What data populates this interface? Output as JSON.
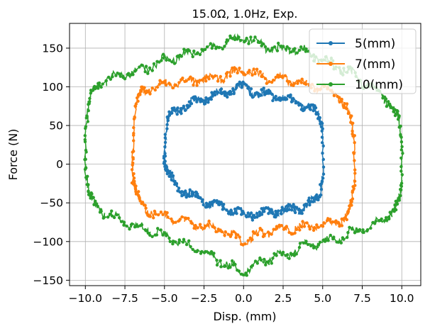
{
  "chart_data": {
    "type": "scatter",
    "title": "15.0Ω, 1.0Hz, Exp.",
    "xlabel": "Disp. (mm)",
    "ylabel": "Force (N)",
    "xlim": [
      -11,
      11.2
    ],
    "ylim": [
      -157,
      182
    ],
    "xticks": [
      -10.0,
      -7.5,
      -5.0,
      -2.5,
      0.0,
      2.5,
      5.0,
      7.5,
      10.0
    ],
    "xtick_labels": [
      "−10.0",
      "−7.5",
      "−5.0",
      "−2.5",
      "0.0",
      "2.5",
      "5.0",
      "7.5",
      "10.0"
    ],
    "yticks": [
      -150,
      -100,
      -50,
      0,
      50,
      100,
      150
    ],
    "ytick_labels": [
      "−150",
      "−100",
      "−50",
      "0",
      "50",
      "100",
      "150"
    ],
    "grid": true,
    "legend_position": "top-right",
    "series": [
      {
        "name": "5(mm)",
        "color": "#1f77b4",
        "amplitude": 5,
        "x": [
          -5.0,
          -4.8,
          -4.5,
          -4.0,
          -3.5,
          -3.0,
          -2.5,
          -2.0,
          -1.5,
          -1.0,
          -0.5,
          0.0,
          0.5,
          1.0,
          1.5,
          2.0,
          2.5,
          3.0,
          3.5,
          4.0,
          4.5,
          4.8,
          5.0,
          5.0,
          4.8,
          4.5,
          4.0,
          3.5,
          3.0,
          2.5,
          2.0,
          1.5,
          1.0,
          0.5,
          0.0,
          -0.5,
          -1.0,
          -1.5,
          -2.0,
          -2.5,
          -3.0,
          -3.5,
          -4.0,
          -4.5,
          -4.8,
          -5.0
        ],
        "y": [
          15,
          55,
          65,
          72,
          78,
          80,
          84,
          88,
          90,
          93,
          97,
          100,
          96,
          90,
          90,
          88,
          86,
          82,
          79,
          74,
          68,
          60,
          50,
          -15,
          -40,
          -48,
          -53,
          -57,
          -58,
          -60,
          -61,
          -62,
          -63,
          -64,
          -66,
          -62,
          -57,
          -55,
          -52,
          -48,
          -42,
          -38,
          -32,
          -22,
          -12,
          0
        ]
      },
      {
        "name": "7(mm)",
        "color": "#ff7f0e",
        "amplitude": 7,
        "x": [
          -7.0,
          -6.8,
          -6.5,
          -6.0,
          -5.0,
          -4.0,
          -3.0,
          -2.0,
          -1.0,
          0.0,
          1.0,
          2.0,
          3.0,
          4.0,
          5.0,
          6.0,
          6.5,
          6.8,
          7.0,
          7.0,
          6.8,
          6.5,
          6.0,
          5.0,
          4.0,
          3.0,
          2.0,
          1.0,
          0.0,
          -1.0,
          -2.0,
          -3.0,
          -4.0,
          -5.0,
          -6.0,
          -6.5,
          -6.8,
          -7.0
        ],
        "y": [
          20,
          75,
          92,
          98,
          103,
          106,
          108,
          110,
          115,
          122,
          115,
          110,
          108,
          103,
          100,
          88,
          75,
          55,
          30,
          -30,
          -55,
          -68,
          -74,
          -78,
          -80,
          -83,
          -86,
          -90,
          -100,
          -90,
          -82,
          -78,
          -72,
          -66,
          -60,
          -52,
          -38,
          -20
        ]
      },
      {
        "name": "10(mm)",
        "color": "#2ca02c",
        "amplitude": 10,
        "x": [
          -10.0,
          -9.8,
          -9.5,
          -9.0,
          -8.0,
          -7.0,
          -6.0,
          -5.0,
          -4.0,
          -3.0,
          -2.0,
          -1.0,
          0.0,
          1.0,
          2.0,
          3.0,
          4.0,
          5.0,
          6.0,
          7.0,
          8.0,
          9.0,
          9.5,
          9.8,
          10.0,
          10.0,
          9.8,
          9.5,
          9.0,
          8.0,
          7.0,
          6.0,
          5.0,
          4.0,
          3.0,
          2.0,
          1.0,
          0.0,
          -1.0,
          -2.0,
          -3.0,
          -4.0,
          -5.0,
          -6.0,
          -7.0,
          -8.0,
          -9.0,
          -9.5,
          -9.8,
          -10.0
        ],
        "y": [
          30,
          75,
          95,
          105,
          115,
          120,
          125,
          135,
          140,
          145,
          150,
          158,
          165,
          155,
          148,
          150,
          145,
          135,
          125,
          115,
          100,
          85,
          70,
          55,
          20,
          -30,
          -50,
          -60,
          -70,
          -80,
          -88,
          -95,
          -100,
          -105,
          -115,
          -120,
          -128,
          -140,
          -130,
          -120,
          -110,
          -100,
          -92,
          -85,
          -78,
          -70,
          -60,
          -50,
          -40,
          -10
        ]
      }
    ]
  }
}
